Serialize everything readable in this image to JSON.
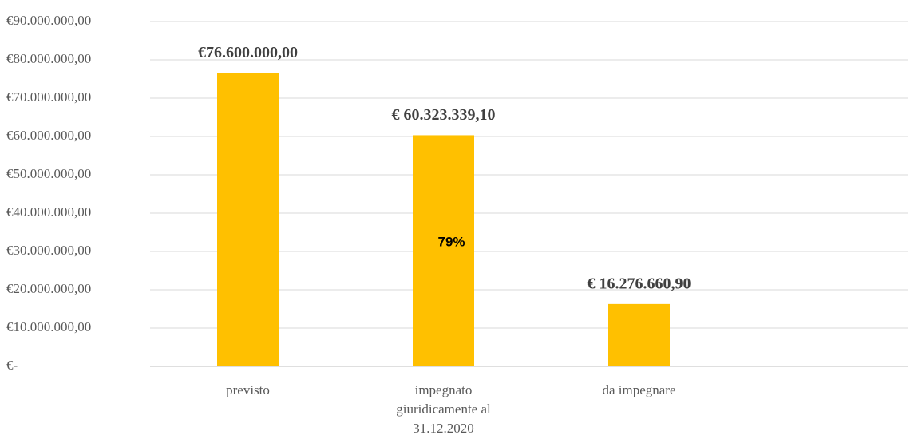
{
  "chart_data": {
    "type": "bar",
    "categories": [
      "previsto",
      "impegnato giuridicamente al 31.12.2020",
      "da impegnare"
    ],
    "values": [
      76600000,
      60323339.1,
      16276660.9
    ],
    "value_labels": [
      "€76.600.000,00",
      "€ 60.323.339,10",
      "€ 16.276.660,90"
    ],
    "color": "#ffc000",
    "annotation": "79%",
    "ylim": [
      0,
      90000000
    ],
    "yticks": [
      {
        "value": 0,
        "label": "€-"
      },
      {
        "value": 10000000,
        "label": "€10.000.000,00"
      },
      {
        "value": 20000000,
        "label": "€20.000.000,00"
      },
      {
        "value": 30000000,
        "label": "€30.000.000,00"
      },
      {
        "value": 40000000,
        "label": "€40.000.000,00"
      },
      {
        "value": 50000000,
        "label": "€50.000.000,00"
      },
      {
        "value": 60000000,
        "label": "€60.000.000,00"
      },
      {
        "value": 70000000,
        "label": "€70.000.000,00"
      },
      {
        "value": 80000000,
        "label": "€80.000.000,00"
      },
      {
        "value": 90000000,
        "label": "€90.000.000,00"
      }
    ],
    "grid": true
  }
}
